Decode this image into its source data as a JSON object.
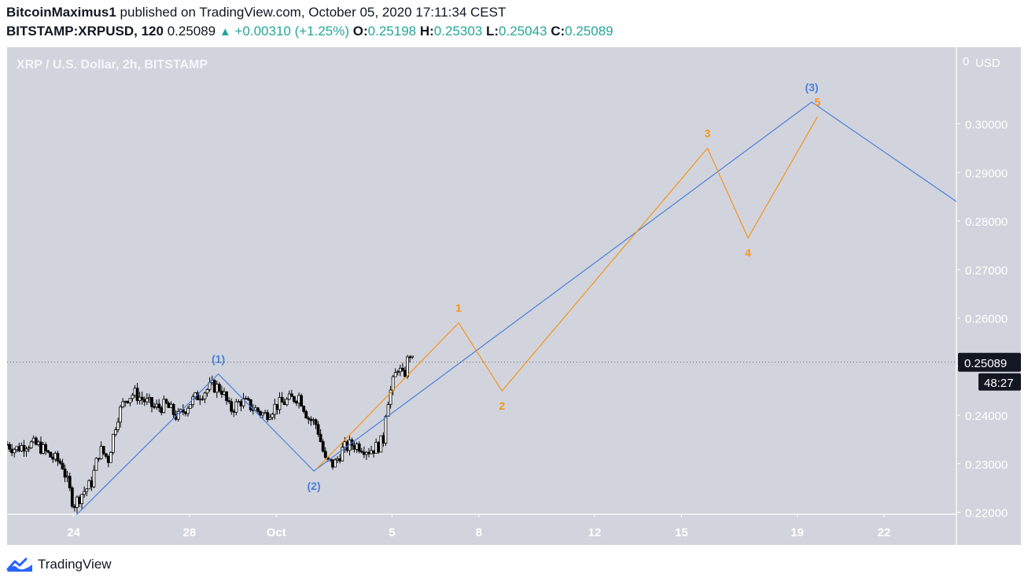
{
  "header": {
    "author": "BitcoinMaximus1",
    "published": "published on TradingView.com, October 05, 2020 17:11:34 CEST",
    "symbol": "BITSTAMP:XRPUSD, 120",
    "last": "0.25089",
    "change": "+0.00310 (+1.25%)",
    "open_label": "O:",
    "open": "0.25198",
    "high_label": "H:",
    "high": "0.25303",
    "low_label": "L:",
    "low": "0.25043",
    "close_label": "C:",
    "close": "0.25089"
  },
  "colors": {
    "background": "#d1d4dc",
    "blue_wave": "#4a7fdc",
    "orange_wave": "#f7931a",
    "candle": "#000000",
    "up": "#26a69a"
  },
  "footer": {
    "brand": "TradingView",
    "logo_icon": "tradingview-logo-icon"
  },
  "chart_data": {
    "type": "line",
    "title": "XRP / U.S. Dollar, 2h, BITSTAMP",
    "currency": "USD",
    "price_axis_top_label": "0",
    "ylim": [
      0.2196,
      0.3158
    ],
    "y_ticks": [
      "0.30000",
      "0.29000",
      "0.28000",
      "0.27000",
      "0.26000",
      "0.25000",
      "0.24000",
      "0.23000",
      "0.22000"
    ],
    "y_tick_values": [
      0.3,
      0.29,
      0.28,
      0.27,
      0.26,
      0.25,
      0.24,
      0.23,
      0.22
    ],
    "x_ticks": [
      "24",
      "28",
      "Oct",
      "5",
      "8",
      "12",
      "15",
      "19",
      "22"
    ],
    "x_tick_days": [
      24,
      28,
      31,
      35,
      38,
      42,
      45,
      49,
      52
    ],
    "xlim_days": [
      21.7,
      54.5
    ],
    "last_price_label": "0.25089",
    "last_price": 0.25089,
    "countdown": "48:27",
    "price_series": {
      "name": "",
      "x_days": [
        21.7,
        22.0,
        22.4,
        22.8,
        23.2,
        23.6,
        24.0,
        24.3,
        24.6,
        24.9,
        25.2,
        25.5,
        25.8,
        26.1,
        26.4,
        26.8,
        27.2,
        27.6,
        28.0,
        28.4,
        28.8,
        29.1,
        29.4,
        29.8,
        30.2,
        30.6,
        31.0,
        31.4,
        31.8,
        32.1,
        32.4,
        32.7,
        33.0,
        33.3,
        33.6,
        33.9,
        34.2,
        34.5,
        34.7,
        34.8,
        34.95,
        35.2,
        35.4,
        35.6,
        35.7
      ],
      "values": [
        0.234,
        0.233,
        0.2342,
        0.2337,
        0.2315,
        0.23,
        0.2215,
        0.224,
        0.2258,
        0.233,
        0.231,
        0.2395,
        0.2435,
        0.2445,
        0.2432,
        0.2415,
        0.242,
        0.2395,
        0.2425,
        0.2445,
        0.246,
        0.2455,
        0.241,
        0.243,
        0.2415,
        0.24,
        0.242,
        0.243,
        0.244,
        0.2395,
        0.238,
        0.2305,
        0.2298,
        0.233,
        0.234,
        0.2337,
        0.2328,
        0.2335,
        0.235,
        0.242,
        0.245,
        0.25,
        0.2475,
        0.253,
        0.2509
      ]
    },
    "waves": [
      {
        "name": "",
        "color": "#4a7fdc",
        "points": [
          {
            "x_day": 24.1,
            "y": 0.2195,
            "label": ""
          },
          {
            "x_day": 29.0,
            "y": 0.2485,
            "label": "(1)"
          },
          {
            "x_day": 32.3,
            "y": 0.2285,
            "label": "(2)"
          },
          {
            "x_day": 49.5,
            "y": 0.3045,
            "label": "(3)"
          },
          {
            "x_day": 54.5,
            "y": 0.284,
            "label": ""
          }
        ]
      },
      {
        "name": "",
        "color": "#f7931a",
        "points": [
          {
            "x_day": 32.4,
            "y": 0.229,
            "label": ""
          },
          {
            "x_day": 37.3,
            "y": 0.259,
            "label": "1"
          },
          {
            "x_day": 38.8,
            "y": 0.245,
            "label": "2"
          },
          {
            "x_day": 45.9,
            "y": 0.295,
            "label": "3"
          },
          {
            "x_day": 47.3,
            "y": 0.2765,
            "label": "4"
          },
          {
            "x_day": 49.7,
            "y": 0.3015,
            "label": "5"
          }
        ]
      }
    ]
  }
}
